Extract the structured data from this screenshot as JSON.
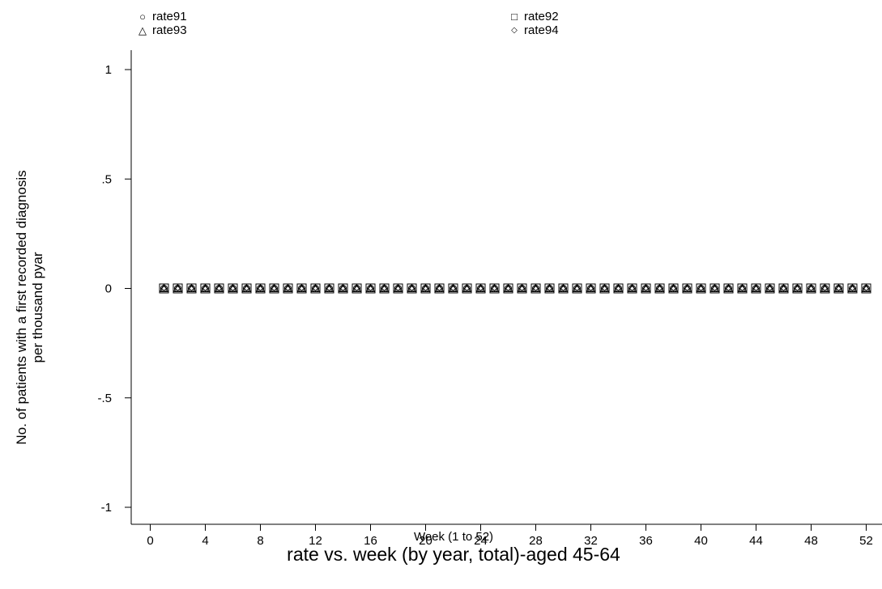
{
  "chart_data": {
    "type": "scatter",
    "title": "rate vs. week (by year, total)-aged 45-64",
    "xlabel": "Week (1 to 52)",
    "ylabel_lines": [
      "No. of patients with a first recorded diagnosis",
      "per thousand pyar"
    ],
    "xlim": [
      0,
      52
    ],
    "ylim": [
      -1,
      1
    ],
    "x_ticks": [
      "0",
      "4",
      "8",
      "12",
      "16",
      "20",
      "24",
      "28",
      "32",
      "36",
      "40",
      "44",
      "48",
      "52"
    ],
    "y_ticks": [
      {
        "value": 1,
        "label": "1"
      },
      {
        "value": 0.5,
        "label": ".5"
      },
      {
        "value": 0,
        "label": "0"
      },
      {
        "value": -0.5,
        "label": "-.5"
      },
      {
        "value": -1,
        "label": "-1"
      }
    ],
    "x": [
      1,
      2,
      3,
      4,
      5,
      6,
      7,
      8,
      9,
      10,
      11,
      12,
      13,
      14,
      15,
      16,
      17,
      18,
      19,
      20,
      21,
      22,
      23,
      24,
      25,
      26,
      27,
      28,
      29,
      30,
      31,
      32,
      33,
      34,
      35,
      36,
      37,
      38,
      39,
      40,
      41,
      42,
      43,
      44,
      45,
      46,
      47,
      48,
      49,
      50,
      51,
      52
    ],
    "series": [
      {
        "name": "rate91",
        "marker": "circle",
        "values": [
          0,
          0,
          0,
          0,
          0,
          0,
          0,
          0,
          0,
          0,
          0,
          0,
          0,
          0,
          0,
          0,
          0,
          0,
          0,
          0,
          0,
          0,
          0,
          0,
          0,
          0,
          0,
          0,
          0,
          0,
          0,
          0,
          0,
          0,
          0,
          0,
          0,
          0,
          0,
          0,
          0,
          0,
          0,
          0,
          0,
          0,
          0,
          0,
          0,
          0,
          0,
          0
        ]
      },
      {
        "name": "rate92",
        "marker": "square",
        "values": [
          0,
          0,
          0,
          0,
          0,
          0,
          0,
          0,
          0,
          0,
          0,
          0,
          0,
          0,
          0,
          0,
          0,
          0,
          0,
          0,
          0,
          0,
          0,
          0,
          0,
          0,
          0,
          0,
          0,
          0,
          0,
          0,
          0,
          0,
          0,
          0,
          0,
          0,
          0,
          0,
          0,
          0,
          0,
          0,
          0,
          0,
          0,
          0,
          0,
          0,
          0,
          0
        ]
      },
      {
        "name": "rate93",
        "marker": "triangle",
        "values": [
          0,
          0,
          0,
          0,
          0,
          0,
          0,
          0,
          0,
          0,
          0,
          0,
          0,
          0,
          0,
          0,
          0,
          0,
          0,
          0,
          0,
          0,
          0,
          0,
          0,
          0,
          0,
          0,
          0,
          0,
          0,
          0,
          0,
          0,
          0,
          0,
          0,
          0,
          0,
          0,
          0,
          0,
          0,
          0,
          0,
          0,
          0,
          0,
          0,
          0,
          0,
          0
        ]
      },
      {
        "name": "rate94",
        "marker": "diamond",
        "values": [
          0,
          0,
          0,
          0,
          0,
          0,
          0,
          0,
          0,
          0,
          0,
          0,
          0,
          0,
          0,
          0,
          0,
          0,
          0,
          0,
          0,
          0,
          0,
          0,
          0,
          0,
          0,
          0,
          0,
          0,
          0,
          0,
          0,
          0,
          0,
          0,
          0,
          0,
          0,
          0,
          0,
          0,
          0,
          0,
          0,
          0,
          0,
          0,
          0,
          0,
          0,
          0
        ]
      }
    ],
    "legend": {
      "placement": "top",
      "items": [
        {
          "label": "rate91",
          "icon": "○"
        },
        {
          "label": "rate92",
          "icon": "□"
        },
        {
          "label": "rate93",
          "icon": "△"
        },
        {
          "label": "rate94",
          "icon": "◇"
        }
      ]
    },
    "grid": false
  }
}
